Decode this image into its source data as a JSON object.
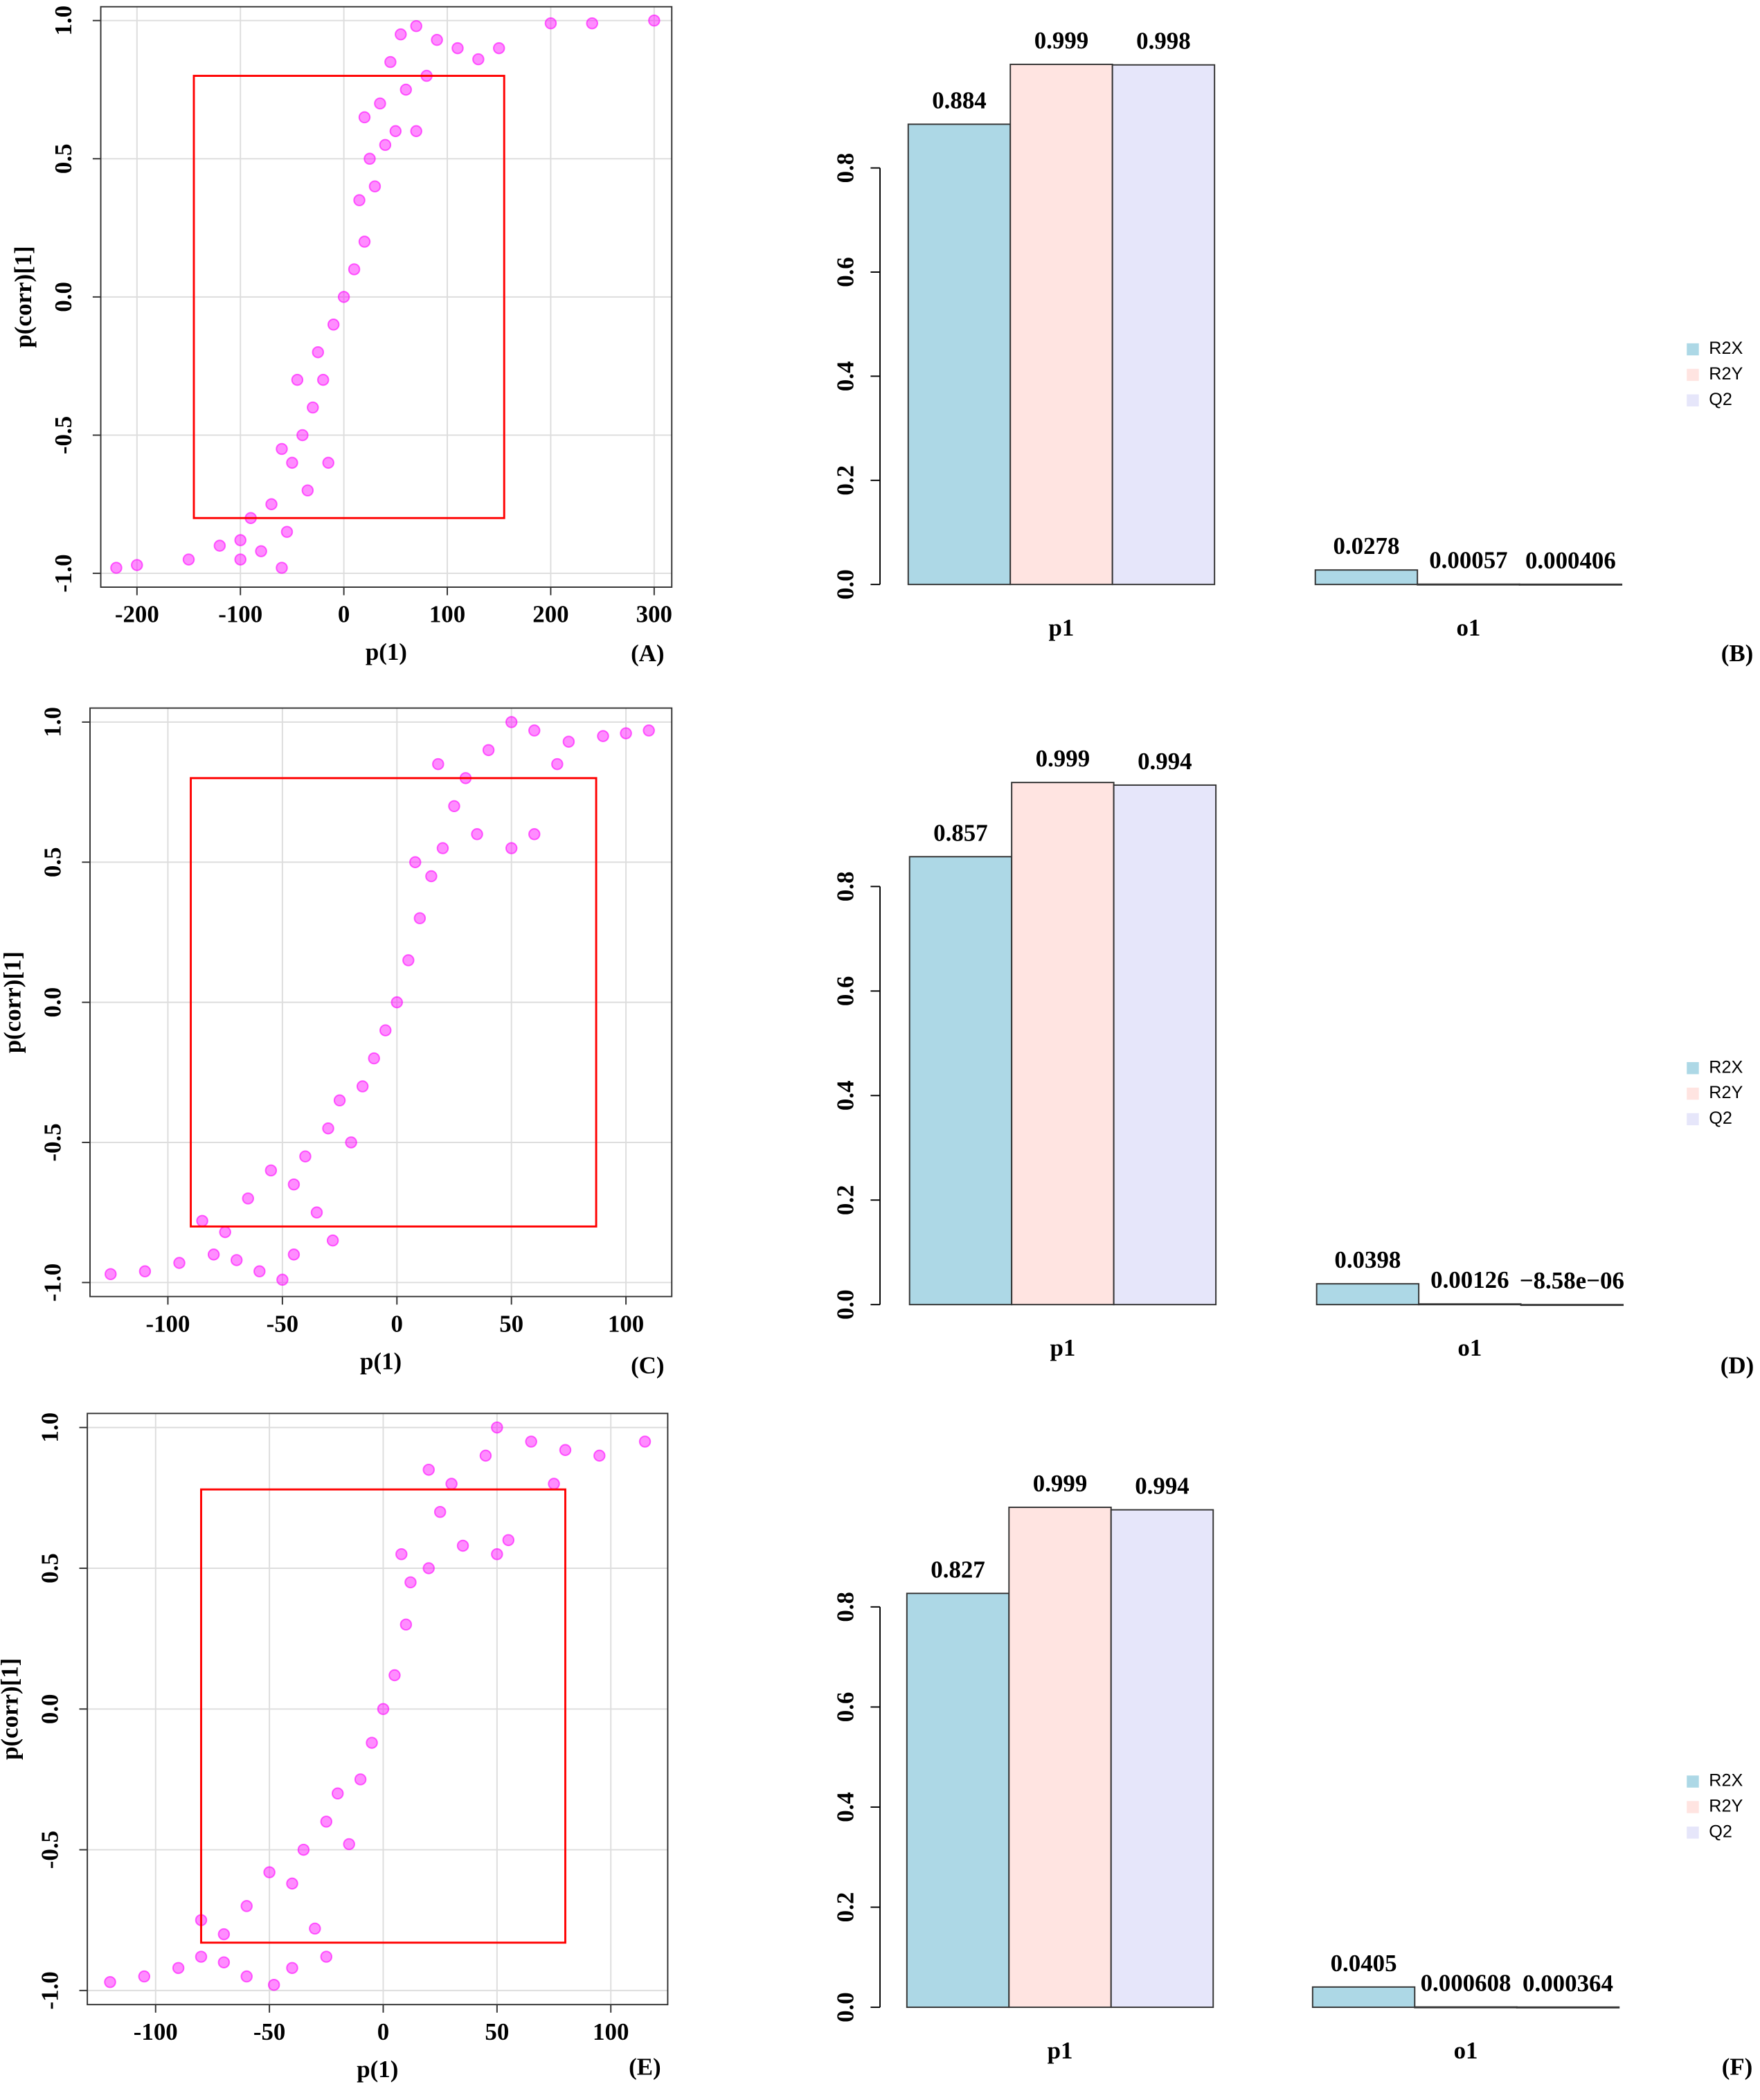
{
  "chart_data": [
    {
      "type": "scatter",
      "panel_label": "(A)",
      "x_label": "p(1)",
      "y_label": "p(corr)[1]",
      "color": "#ff00ff",
      "grid": true,
      "xlim": [
        -235,
        317
      ],
      "ylim": [
        -1.05,
        1.05
      ],
      "xticks": [
        -200,
        -100,
        0,
        100,
        200,
        300
      ],
      "yticks": [
        {
          "value": -1,
          "label": "-1.0"
        },
        -0.5,
        {
          "value": 0,
          "label": "0.0"
        },
        0.5,
        {
          "value": 1,
          "label": "1.0"
        }
      ],
      "box": {
        "x": [
          -145,
          155
        ],
        "y": [
          -0.8,
          0.8
        ]
      },
      "x": [
        -220,
        -200,
        -150,
        -120,
        -100,
        -80,
        -60,
        -90,
        -70,
        -50,
        -60,
        -40,
        -30,
        -45,
        -20,
        -25,
        -10,
        0,
        10,
        20,
        15,
        30,
        25,
        40,
        50,
        70,
        35,
        60,
        45,
        80,
        55,
        70,
        90,
        110,
        130,
        150,
        200,
        240,
        300,
        20,
        -15,
        -35,
        -100,
        -55
      ],
      "y": [
        -0.98,
        -0.97,
        -0.95,
        -0.9,
        -0.88,
        -0.92,
        -0.98,
        -0.8,
        -0.75,
        -0.6,
        -0.55,
        -0.5,
        -0.4,
        -0.3,
        -0.3,
        -0.2,
        -0.1,
        0,
        0.1,
        0.2,
        0.35,
        0.4,
        0.5,
        0.55,
        0.6,
        0.6,
        0.7,
        0.75,
        0.85,
        0.8,
        0.95,
        0.98,
        0.93,
        0.9,
        0.86,
        0.9,
        0.99,
        0.99,
        1.0,
        0.65,
        -0.6,
        -0.7,
        -0.95,
        -0.85
      ]
    },
    {
      "type": "bar",
      "panel_label": "(B)",
      "legend": "right",
      "categories": [
        "p1",
        "o1"
      ],
      "ylim": [
        0,
        1
      ],
      "yticks": [
        {
          "value": 0,
          "label": "0.0"
        },
        0.2,
        0.4,
        0.6,
        0.8
      ],
      "series": [
        {
          "name": "R2X",
          "color": "#add8e6",
          "values": [
            0.884,
            0.0278
          ],
          "value_labels": [
            "0.884",
            "0.0278"
          ]
        },
        {
          "name": "R2Y",
          "color": "#ffe4e1",
          "values": [
            0.999,
            0.00057
          ],
          "value_labels": [
            "0.999",
            "0.00057"
          ]
        },
        {
          "name": "Q2",
          "color": "#e6e6fa",
          "values": [
            0.998,
            0.000406
          ],
          "value_labels": [
            "0.998",
            "0.000406"
          ]
        }
      ]
    },
    {
      "type": "scatter",
      "panel_label": "(C)",
      "x_label": "p(1)",
      "y_label": "p(corr)[1]",
      "color": "#ff00ff",
      "grid": true,
      "xlim": [
        -134,
        120
      ],
      "ylim": [
        -1.05,
        1.05
      ],
      "xticks": [
        -100,
        -50,
        0,
        50,
        100
      ],
      "yticks": [
        {
          "value": -1,
          "label": "-1.0"
        },
        -0.5,
        {
          "value": 0,
          "label": "0.0"
        },
        0.5,
        {
          "value": 1,
          "label": "1.0"
        }
      ],
      "box": {
        "x": [
          -90,
          87
        ],
        "y": [
          -0.8,
          0.8
        ]
      },
      "x": [
        -125,
        -110,
        -95,
        -80,
        -70,
        -60,
        -50,
        -75,
        -65,
        -55,
        -45,
        -40,
        -35,
        -30,
        -25,
        -20,
        -15,
        -10,
        -5,
        0,
        5,
        10,
        15,
        8,
        20,
        25,
        35,
        50,
        60,
        30,
        40,
        50,
        60,
        75,
        90,
        100,
        110,
        70,
        -85,
        -28,
        18,
        -45
      ],
      "y": [
        -0.97,
        -0.96,
        -0.93,
        -0.9,
        -0.92,
        -0.96,
        -0.99,
        -0.82,
        -0.7,
        -0.6,
        -0.65,
        -0.55,
        -0.75,
        -0.45,
        -0.35,
        -0.5,
        -0.3,
        -0.2,
        -0.1,
        0,
        0.15,
        0.3,
        0.45,
        0.5,
        0.55,
        0.7,
        0.6,
        0.55,
        0.6,
        0.8,
        0.9,
        1.0,
        0.97,
        0.93,
        0.95,
        0.96,
        0.97,
        0.85,
        -0.78,
        -0.85,
        0.85,
        -0.9
      ]
    },
    {
      "type": "bar",
      "panel_label": "(D)",
      "legend": "right",
      "categories": [
        "p1",
        "o1"
      ],
      "ylim": [
        0,
        1
      ],
      "yticks": [
        {
          "value": 0,
          "label": "0.0"
        },
        0.2,
        0.4,
        0.6,
        0.8
      ],
      "series": [
        {
          "name": "R2X",
          "color": "#add8e6",
          "values": [
            0.857,
            0.0398
          ],
          "value_labels": [
            "0.857",
            "0.0398"
          ]
        },
        {
          "name": "R2Y",
          "color": "#ffe4e1",
          "values": [
            0.999,
            0.00126
          ],
          "value_labels": [
            "0.999",
            "0.00126"
          ]
        },
        {
          "name": "Q2",
          "color": "#e6e6fa",
          "values": [
            0.994,
            -8.58e-06
          ],
          "value_labels": [
            "0.994",
            "−8.58e−06"
          ]
        }
      ]
    },
    {
      "type": "scatter",
      "panel_label": "(E)",
      "x_label": "p(1)",
      "y_label": "p(corr)[1]",
      "color": "#ff00ff",
      "grid": true,
      "xlim": [
        -130,
        125
      ],
      "ylim": [
        -1.05,
        1.05
      ],
      "xticks": [
        -100,
        -50,
        0,
        50,
        100
      ],
      "yticks": [
        {
          "value": -1,
          "label": "-1.0"
        },
        -0.5,
        {
          "value": 0,
          "label": "0.0"
        },
        0.5,
        {
          "value": 1,
          "label": "1.0"
        }
      ],
      "box": {
        "x": [
          -80,
          80
        ],
        "y": [
          -0.83,
          0.78
        ]
      },
      "x": [
        -120,
        -105,
        -90,
        -80,
        -70,
        -60,
        -48,
        -70,
        -60,
        -50,
        -40,
        -35,
        -30,
        -25,
        -20,
        -15,
        -10,
        -5,
        0,
        5,
        10,
        12,
        8,
        20,
        25,
        35,
        50,
        55,
        30,
        45,
        50,
        65,
        80,
        95,
        115,
        75,
        -80,
        -25,
        20,
        -40
      ],
      "y": [
        -0.97,
        -0.95,
        -0.92,
        -0.88,
        -0.9,
        -0.95,
        -0.98,
        -0.8,
        -0.7,
        -0.58,
        -0.62,
        -0.5,
        -0.78,
        -0.4,
        -0.3,
        -0.48,
        -0.25,
        -0.12,
        0,
        0.12,
        0.3,
        0.45,
        0.55,
        0.5,
        0.7,
        0.58,
        0.55,
        0.6,
        0.8,
        0.9,
        1.0,
        0.95,
        0.92,
        0.9,
        0.95,
        0.8,
        -0.75,
        -0.88,
        0.85,
        -0.92
      ]
    },
    {
      "type": "bar",
      "panel_label": "(F)",
      "legend": "right",
      "categories": [
        "p1",
        "o1"
      ],
      "ylim": [
        0,
        1
      ],
      "yticks": [
        {
          "value": 0,
          "label": "0.0"
        },
        0.2,
        0.4,
        0.6,
        0.8
      ],
      "series": [
        {
          "name": "R2X",
          "color": "#add8e6",
          "values": [
            0.827,
            0.0405
          ],
          "value_labels": [
            "0.827",
            "0.0405"
          ]
        },
        {
          "name": "R2Y",
          "color": "#ffe4e1",
          "values": [
            0.999,
            0.000608
          ],
          "value_labels": [
            "0.999",
            "0.000608"
          ]
        },
        {
          "name": "Q2",
          "color": "#e6e6fa",
          "values": [
            0.994,
            0.000364
          ],
          "value_labels": [
            "0.994",
            "0.000364"
          ]
        }
      ]
    }
  ]
}
